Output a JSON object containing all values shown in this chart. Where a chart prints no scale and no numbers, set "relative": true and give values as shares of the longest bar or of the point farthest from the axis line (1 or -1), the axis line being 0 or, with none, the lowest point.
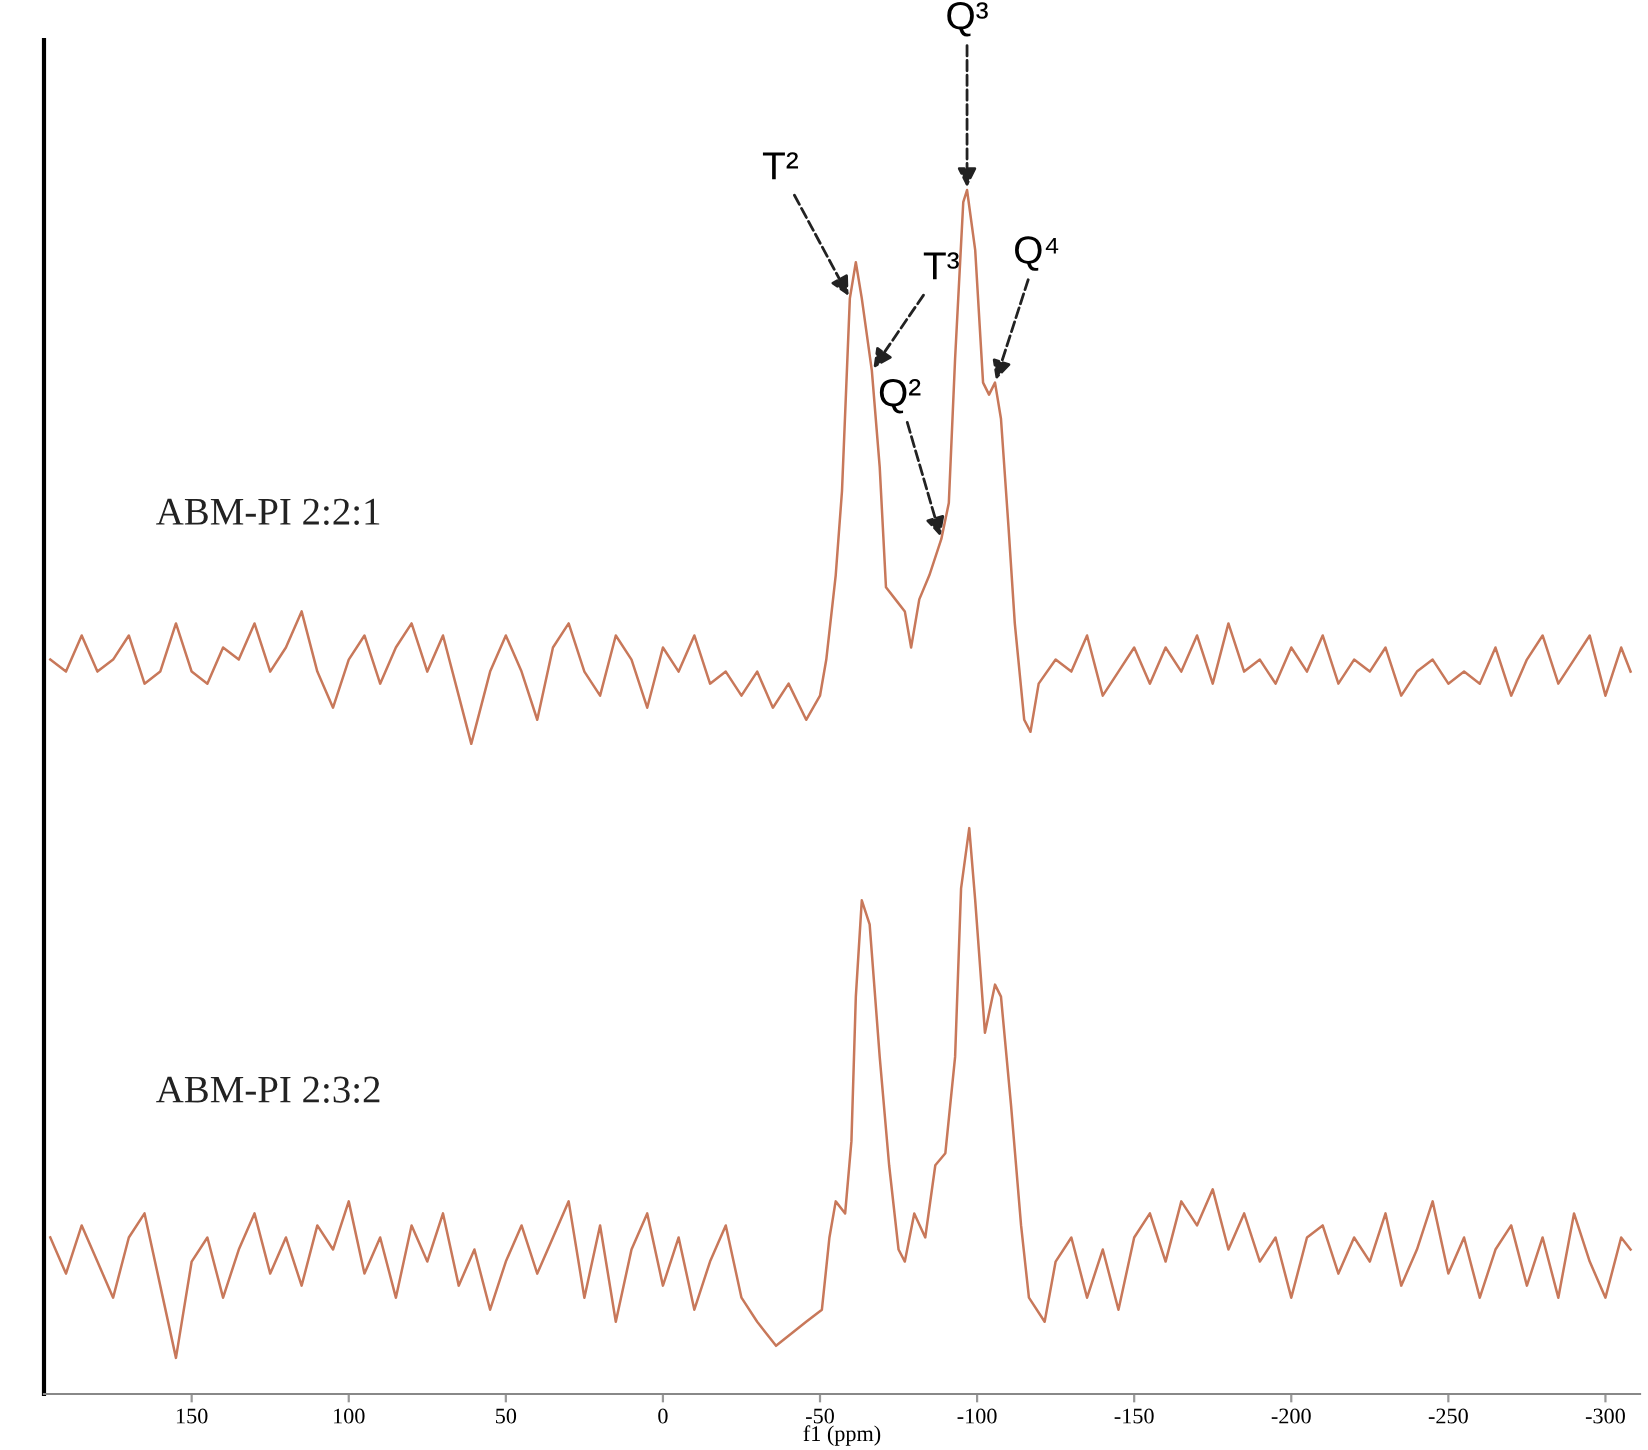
{
  "chart_data": {
    "type": "line",
    "relative": true,
    "grid": false,
    "legend": false,
    "xlim": [
      197,
      -311
    ],
    "xlabel": "f1 (ppm)",
    "xticks": [
      150,
      100,
      50,
      0,
      {
        "value": -50,
        "label": "-50"
      },
      {
        "value": -100,
        "label": "-100"
      },
      {
        "value": -150,
        "label": "-150"
      },
      {
        "value": -200,
        "label": "-200"
      },
      {
        "value": -250,
        "label": "-250"
      },
      {
        "value": -300,
        "label": "-300"
      }
    ],
    "series": [
      {
        "name": "ABM-PI 2:2:1",
        "color": "#c8785a",
        "x": [
          195,
          190,
          185,
          180,
          175,
          170,
          165,
          160,
          155,
          150,
          145,
          140,
          135,
          130,
          125,
          120,
          115,
          110,
          105,
          100,
          95,
          90,
          85,
          80,
          75,
          70,
          65,
          61,
          55,
          50,
          45,
          40,
          35,
          30,
          25,
          20,
          15,
          10,
          5,
          0,
          -5,
          -10,
          -15,
          -20,
          -25,
          -30,
          -35,
          -40,
          -45.6,
          -50,
          -52,
          -55,
          -57,
          -59.5,
          -61.4,
          -63.3,
          -66.5,
          -69,
          -71,
          -74,
          -77,
          -79,
          -81.6,
          -84.8,
          -88.6,
          -91,
          -93,
          -95.6,
          -96.8,
          -99.4,
          -101.9,
          -103.8,
          -105.7,
          -107.6,
          -110,
          -112,
          -115,
          -117,
          -119.6,
          -125,
          -130,
          -135,
          -140,
          -145,
          -150,
          -155,
          -160,
          -165,
          -170,
          -175,
          -180,
          -185,
          -190,
          -195,
          -200,
          -205,
          -210,
          -215,
          -220,
          -225,
          -230,
          -235,
          -240,
          -245,
          -250,
          -255,
          -260,
          -265,
          -270,
          -275,
          -280,
          -285,
          -290,
          -295,
          -300,
          -305,
          -308
        ],
        "values": [
          0.61,
          0.6,
          0.63,
          0.6,
          0.61,
          0.63,
          0.59,
          0.6,
          0.64,
          0.6,
          0.59,
          0.62,
          0.61,
          0.64,
          0.6,
          0.62,
          0.65,
          0.6,
          0.57,
          0.61,
          0.63,
          0.59,
          0.62,
          0.64,
          0.6,
          0.63,
          0.58,
          0.54,
          0.6,
          0.63,
          0.6,
          0.56,
          0.62,
          0.64,
          0.6,
          0.58,
          0.63,
          0.61,
          0.57,
          0.62,
          0.6,
          0.63,
          0.59,
          0.6,
          0.58,
          0.6,
          0.57,
          0.59,
          0.56,
          0.58,
          0.61,
          0.68,
          0.75,
          0.91,
          0.94,
          0.91,
          0.85,
          0.77,
          0.67,
          0.66,
          0.65,
          0.62,
          0.66,
          0.68,
          0.71,
          0.74,
          0.86,
          0.99,
          1.0,
          0.95,
          0.84,
          0.83,
          0.84,
          0.81,
          0.72,
          0.64,
          0.56,
          0.55,
          0.59,
          0.61,
          0.6,
          0.63,
          0.58,
          0.6,
          0.62,
          0.59,
          0.62,
          0.6,
          0.63,
          0.59,
          0.64,
          0.6,
          0.61,
          0.59,
          0.62,
          0.6,
          0.63,
          0.59,
          0.61,
          0.6,
          0.62,
          0.58,
          0.6,
          0.61,
          0.59,
          0.6,
          0.59,
          0.62,
          0.58,
          0.61,
          0.63,
          0.59,
          0.61,
          0.63,
          0.58,
          0.62,
          0.6
        ]
      },
      {
        "name": "ABM-PI 2:3:2",
        "color": "#c8785a",
        "x": [
          195,
          190,
          185,
          180,
          175,
          170,
          165,
          160,
          155,
          150,
          145,
          140,
          135,
          130,
          125,
          120,
          115,
          110,
          105,
          100,
          95,
          90,
          85,
          80,
          75,
          70,
          65,
          60,
          55,
          50,
          45,
          40,
          35,
          30,
          25,
          20,
          15,
          10,
          5,
          0,
          -5,
          -10,
          -15,
          -20,
          -25,
          -30,
          -36,
          -45.6,
          -50.6,
          -53,
          -55,
          -58,
          -60,
          -61.4,
          -63.3,
          -65.8,
          -69,
          -72,
          -75,
          -77,
          -80,
          -83.5,
          -86.7,
          -89.9,
          -93,
          -94.9,
          -97.5,
          -99.4,
          -102.5,
          -105.7,
          -107.6,
          -110.8,
          -114,
          -116.5,
          -121.5,
          -125,
          -130,
          -135,
          -140,
          -145,
          -150,
          -155,
          -160,
          -165,
          -170,
          -175,
          -180,
          -185,
          -190,
          -195,
          -200,
          -205,
          -210,
          -215,
          -220,
          -225,
          -230,
          -235,
          -240,
          -245,
          -250,
          -255,
          -260,
          -265,
          -270,
          -275,
          -280,
          -285,
          -290,
          -295,
          -300,
          -305,
          -308
        ],
        "values": [
          0.13,
          0.1,
          0.14,
          0.11,
          0.08,
          0.13,
          0.15,
          0.09,
          0.03,
          0.11,
          0.13,
          0.08,
          0.12,
          0.15,
          0.1,
          0.13,
          0.09,
          0.14,
          0.12,
          0.16,
          0.1,
          0.13,
          0.08,
          0.14,
          0.11,
          0.15,
          0.09,
          0.12,
          0.07,
          0.11,
          0.14,
          0.1,
          0.13,
          0.16,
          0.08,
          0.14,
          0.06,
          0.12,
          0.15,
          0.09,
          0.13,
          0.07,
          0.11,
          0.14,
          0.08,
          0.06,
          0.04,
          0.06,
          0.07,
          0.13,
          0.16,
          0.15,
          0.21,
          0.33,
          0.41,
          0.39,
          0.28,
          0.19,
          0.12,
          0.11,
          0.15,
          0.13,
          0.19,
          0.2,
          0.28,
          0.42,
          0.47,
          0.41,
          0.3,
          0.34,
          0.33,
          0.24,
          0.14,
          0.08,
          0.06,
          0.11,
          0.13,
          0.08,
          0.12,
          0.07,
          0.13,
          0.15,
          0.11,
          0.16,
          0.14,
          0.17,
          0.12,
          0.15,
          0.11,
          0.13,
          0.08,
          0.13,
          0.14,
          0.1,
          0.13,
          0.11,
          0.15,
          0.09,
          0.12,
          0.16,
          0.1,
          0.13,
          0.08,
          0.12,
          0.14,
          0.09,
          0.13,
          0.08,
          0.15,
          0.11,
          0.08,
          0.13,
          0.12
        ]
      }
    ],
    "annotations": [
      {
        "text": "T²",
        "x": -59.5,
        "y": 0.91
      },
      {
        "text": "T³",
        "x": -66.5,
        "y": 0.85
      },
      {
        "text": "Q²",
        "x": -88.6,
        "y": 0.71
      },
      {
        "text": "Q³",
        "x": -96.8,
        "y": 1.0
      },
      {
        "text": "Q⁴",
        "x": -105.7,
        "y": 0.84
      }
    ]
  }
}
